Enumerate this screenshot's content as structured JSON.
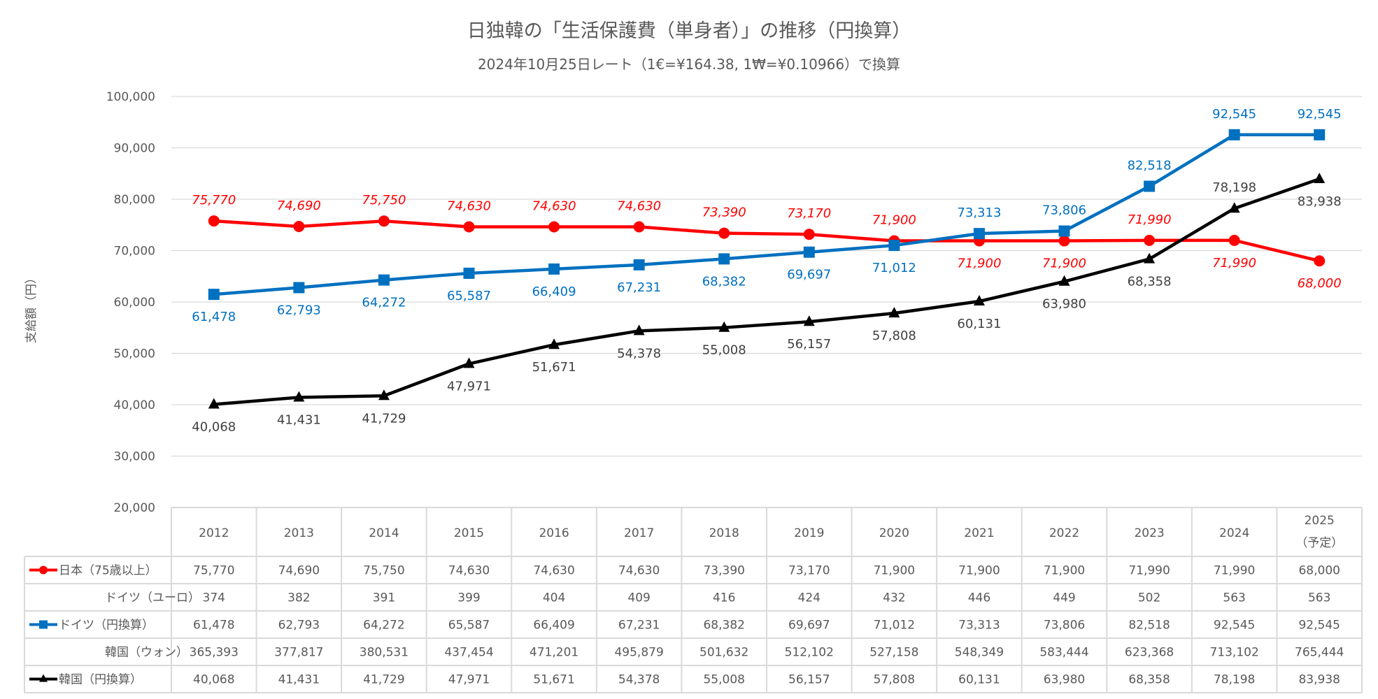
{
  "chart_data": {
    "type": "line",
    "title": "日独韓の「生活保護費（単身者）」の推移（円換算）",
    "subtitle": "2024年10月25日レート（1€=¥164.38, 1₩=¥0.10966）で換算",
    "ylabel": "支給額（円）",
    "ylim": [
      20000,
      100000
    ],
    "yticks": [
      "20,000",
      "30,000",
      "40,000",
      "50,000",
      "60,000",
      "70,000",
      "80,000",
      "90,000",
      "100,000"
    ],
    "ytick_values": [
      20000,
      30000,
      40000,
      50000,
      60000,
      70000,
      80000,
      90000,
      100000
    ],
    "grid": true,
    "categories": [
      "2012",
      "2013",
      "2014",
      "2015",
      "2016",
      "2017",
      "2018",
      "2019",
      "2020",
      "2021",
      "2022",
      "2023",
      "2024",
      "2025"
    ],
    "category_note_2025": "（予定）",
    "series": [
      {
        "name": "日本（75歳以上）",
        "color": "#FF0000",
        "marker": "circle",
        "plotted": true,
        "values": [
          75770,
          74690,
          75750,
          74630,
          74630,
          74630,
          73390,
          73170,
          71900,
          71900,
          71900,
          71990,
          71990,
          68000
        ],
        "labels": [
          "75,770",
          "74,690",
          "75,750",
          "74,630",
          "74,630",
          "74,630",
          "73,390",
          "73,170",
          "71,900",
          "71,900",
          "71,900",
          "71,990",
          "71,990",
          "68,000"
        ]
      },
      {
        "name": "ドイツ（ユーロ）",
        "plotted": false,
        "values": [
          374,
          382,
          391,
          399,
          404,
          409,
          416,
          424,
          432,
          446,
          449,
          502,
          563,
          563
        ],
        "labels": [
          "374",
          "382",
          "391",
          "399",
          "404",
          "409",
          "416",
          "424",
          "432",
          "446",
          "449",
          "502",
          "563",
          "563"
        ]
      },
      {
        "name": "ドイツ（円換算）",
        "color": "#0070C0",
        "marker": "square",
        "plotted": true,
        "values": [
          61478,
          62793,
          64272,
          65587,
          66409,
          67231,
          68382,
          69697,
          71012,
          73313,
          73806,
          82518,
          92545,
          92545
        ],
        "labels": [
          "61,478",
          "62,793",
          "64,272",
          "65,587",
          "66,409",
          "67,231",
          "68,382",
          "69,697",
          "71,012",
          "73,313",
          "73,806",
          "82,518",
          "92,545",
          "92,545"
        ]
      },
      {
        "name": "韓国（ウォン）",
        "plotted": false,
        "values": [
          365393,
          377817,
          380531,
          437454,
          471201,
          495879,
          501632,
          512102,
          527158,
          548349,
          583444,
          623368,
          713102,
          765444
        ],
        "labels": [
          "365,393",
          "377,817",
          "380,531",
          "437,454",
          "471,201",
          "495,879",
          "501,632",
          "512,102",
          "527,158",
          "548,349",
          "583,444",
          "623,368",
          "713,102",
          "765,444"
        ]
      },
      {
        "name": "韓国（円換算）",
        "color": "#000000",
        "marker": "triangle",
        "plotted": true,
        "values": [
          40068,
          41431,
          41729,
          47971,
          51671,
          54378,
          55008,
          56157,
          57808,
          60131,
          63980,
          68358,
          78198,
          83938
        ],
        "labels": [
          "40,068",
          "41,431",
          "41,729",
          "47,971",
          "51,671",
          "54,378",
          "55,008",
          "56,157",
          "57,808",
          "60,131",
          "63,980",
          "68,358",
          "78,198",
          "83,938"
        ]
      }
    ],
    "legend": "data-table"
  }
}
